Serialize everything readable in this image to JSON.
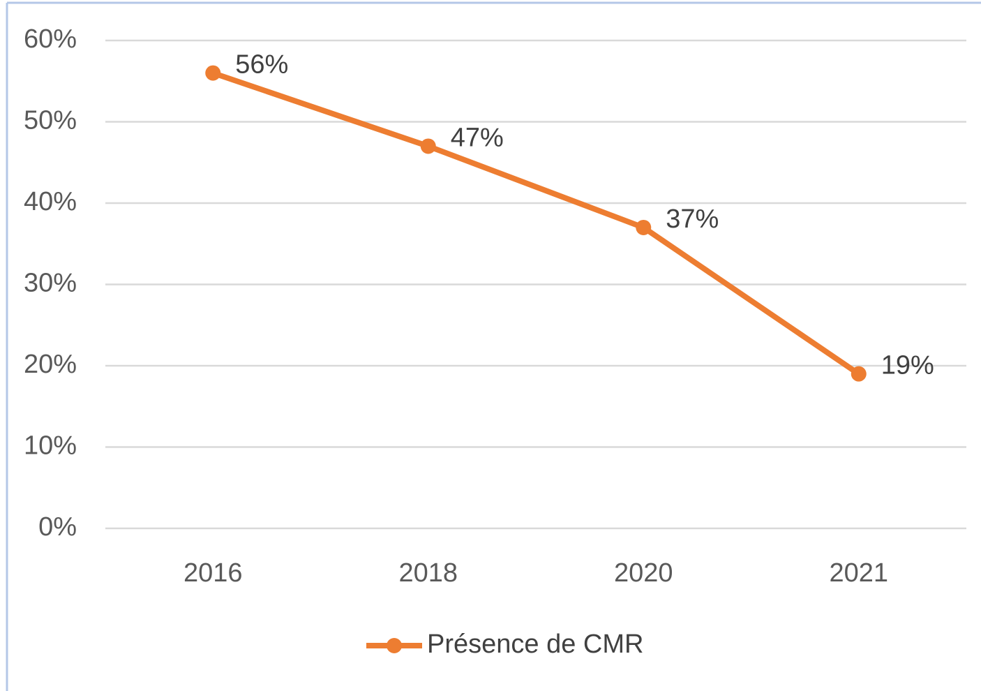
{
  "chart_data": {
    "type": "line",
    "categories": [
      "2016",
      "2018",
      "2020",
      "2021"
    ],
    "series": [
      {
        "name": "Présence de CMR",
        "color": "#ed7d31",
        "values": [
          56,
          47,
          37,
          19
        ],
        "value_labels": [
          "56%",
          "47%",
          "37%",
          "19%"
        ]
      }
    ],
    "ylim": [
      0,
      60
    ],
    "yticks": [
      {
        "value": 0,
        "label": "0%"
      },
      {
        "value": 10,
        "label": "10%"
      },
      {
        "value": 20,
        "label": "20%"
      },
      {
        "value": 30,
        "label": "30%"
      },
      {
        "value": 40,
        "label": "40%"
      },
      {
        "value": 50,
        "label": "50%"
      },
      {
        "value": 60,
        "label": "60%"
      }
    ],
    "grid": true,
    "legend": "bottom"
  }
}
